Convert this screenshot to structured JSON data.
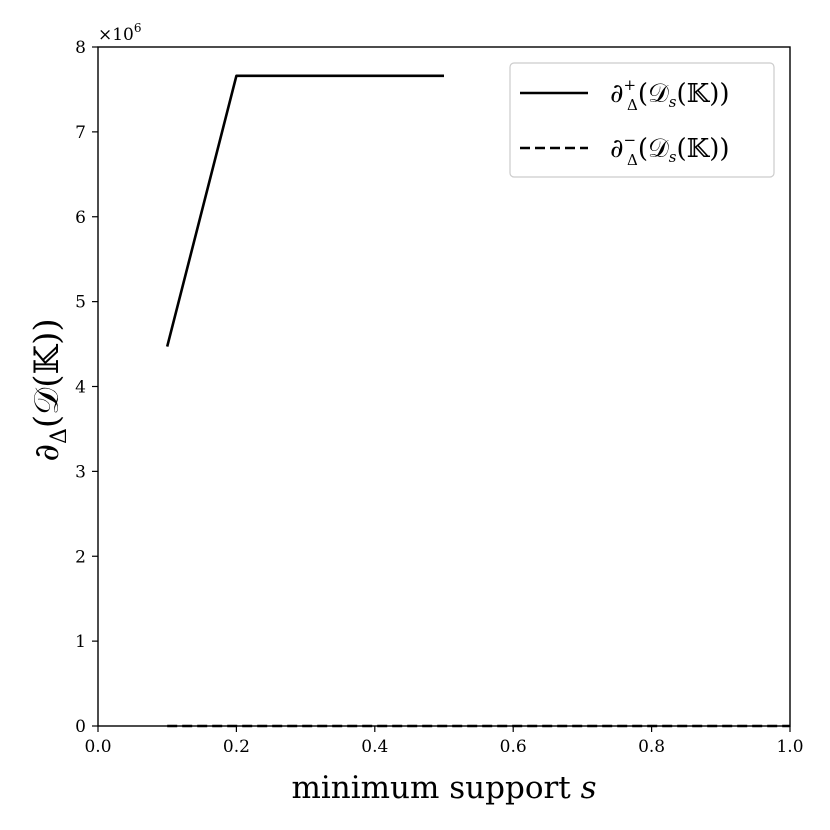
{
  "chart_data": {
    "type": "line",
    "xlabel_main": "minimum support ",
    "xlabel_var": "s",
    "ylabel_parts": {
      "d": "∂",
      "sub": "Δ",
      "open": "(",
      "script": "𝒟",
      "field": "(𝕂)",
      "close": ")"
    },
    "y_multiplier": {
      "base": "×10",
      "exp": "6"
    },
    "xlim": [
      0.0,
      1.0
    ],
    "ylim": [
      0,
      8
    ],
    "x_ticks": [
      0.0,
      0.2,
      0.4,
      0.6,
      0.8,
      1.0
    ],
    "x_tick_labels": [
      "0.0",
      "0.2",
      "0.4",
      "0.6",
      "0.8",
      "1.0"
    ],
    "y_ticks": [
      0,
      1,
      2,
      3,
      4,
      5,
      6,
      7,
      8
    ],
    "y_tick_labels": [
      "0",
      "1",
      "2",
      "3",
      "4",
      "5",
      "6",
      "7",
      "8"
    ],
    "grid": false,
    "legend_position": "top-right",
    "series": [
      {
        "legend": {
          "d": "∂",
          "sup": "+",
          "sub": "Δ",
          "rest": "(𝒟",
          "rest_sub": "s",
          "tail": "(𝕂))"
        },
        "style": "solid",
        "color": "#000000",
        "x": [
          0.1,
          0.2,
          0.3,
          0.4,
          0.5
        ],
        "y": [
          4.47,
          7.66,
          7.66,
          7.66,
          7.66
        ]
      },
      {
        "legend": {
          "d": "∂",
          "sup": "−",
          "sub": "Δ",
          "rest": "(𝒟",
          "rest_sub": "s",
          "tail": "(𝕂))"
        },
        "style": "dashed",
        "color": "#000000",
        "x": [
          0.1,
          0.2,
          0.3,
          0.4,
          0.5,
          0.6,
          0.7,
          0.8,
          0.9,
          1.0
        ],
        "y": [
          0,
          0,
          0,
          0,
          0,
          0,
          0,
          0,
          0,
          0
        ]
      }
    ]
  }
}
